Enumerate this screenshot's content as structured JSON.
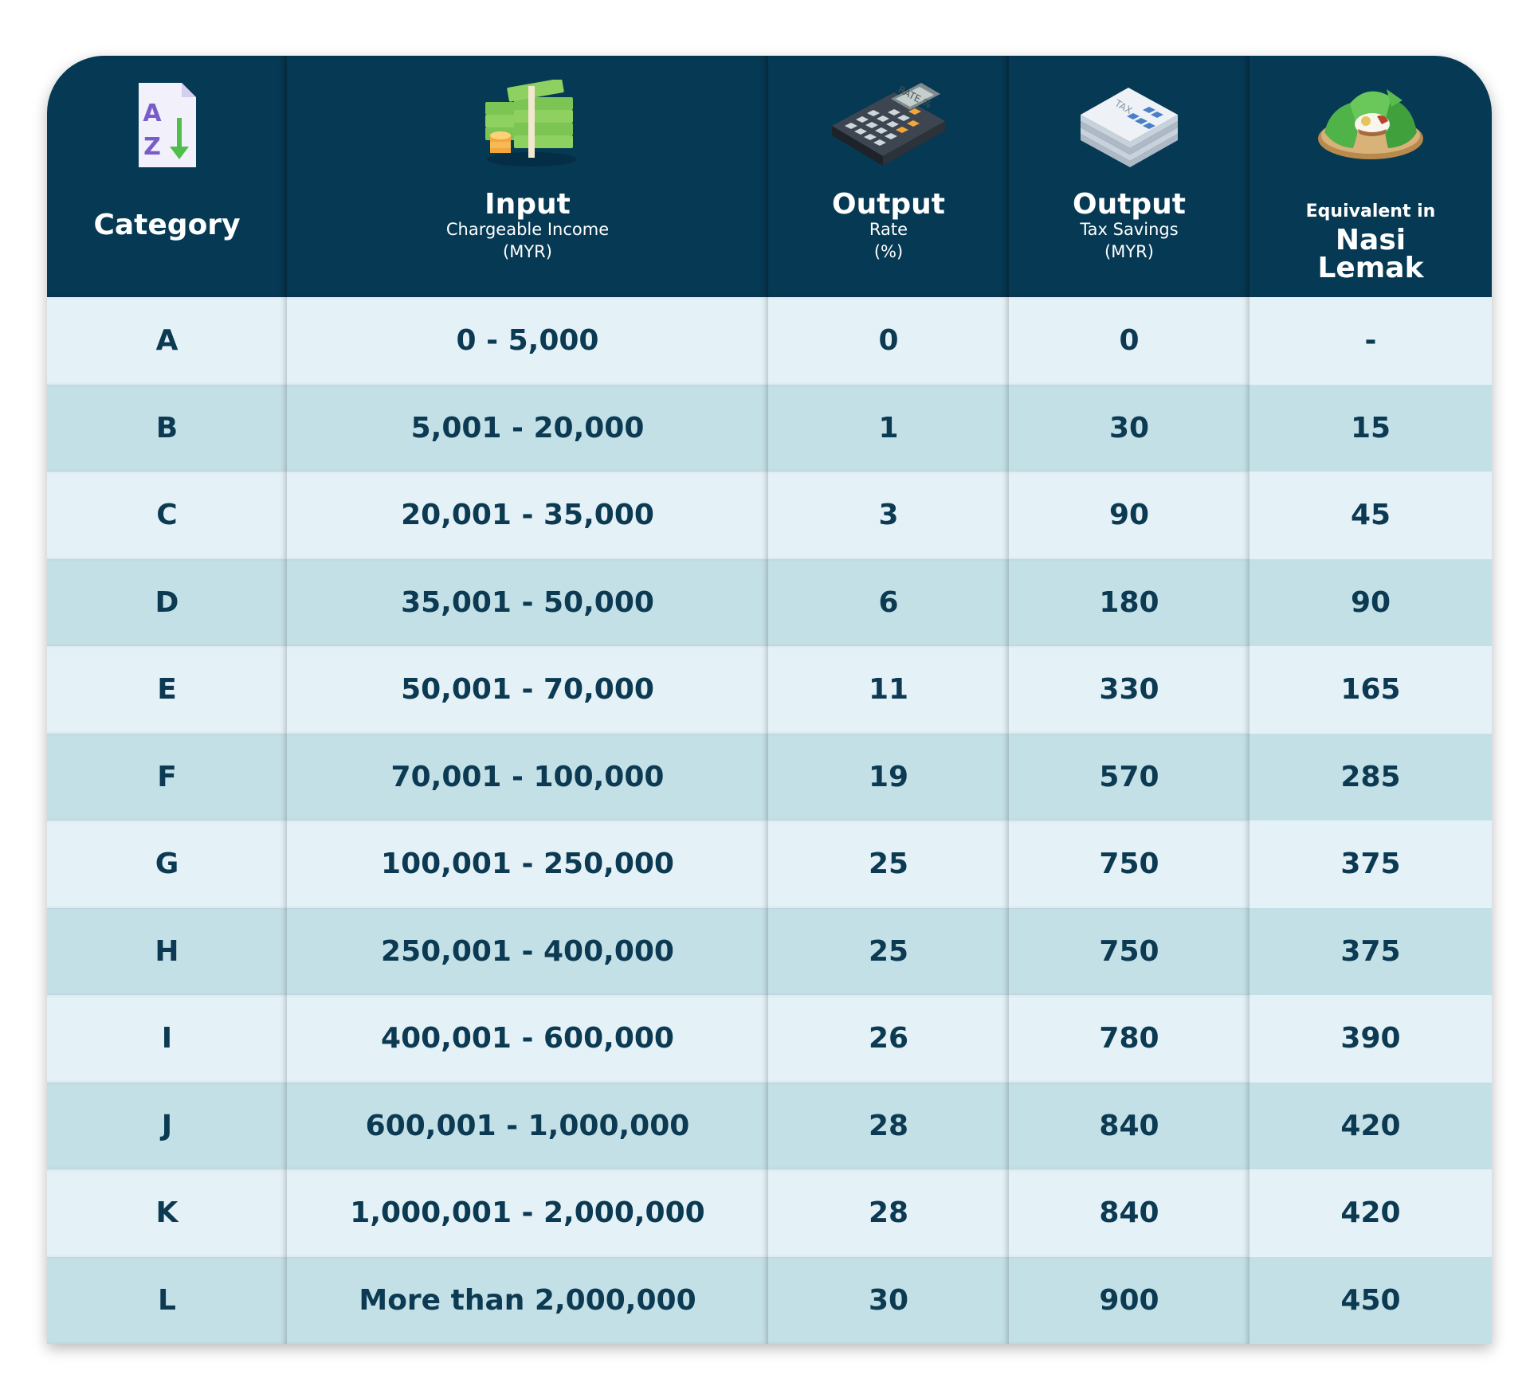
{
  "header": {
    "category": {
      "title": "Category",
      "icon": "az-sort-icon"
    },
    "input": {
      "title": "Input",
      "subtitle": "Chargeable Income",
      "unit": "(MYR)",
      "icon": "money-stack-icon"
    },
    "rate": {
      "title": "Output",
      "subtitle": "Rate",
      "unit": "(%)",
      "icon": "calculator-icon"
    },
    "savings": {
      "title": "Output",
      "subtitle": "Tax Savings",
      "unit": "(MYR)",
      "icon": "tax-document-icon"
    },
    "nasi": {
      "prefix": "Equivalent in",
      "title_line1": "Nasi",
      "title_line2": "Lemak",
      "icon": "nasi-lemak-icon"
    }
  },
  "colors": {
    "header_bg": "#063954",
    "row_light": "#e4f1f7",
    "row_dark": "#c4e0e7",
    "text": "#0b3a52"
  },
  "rows": [
    {
      "category": "A",
      "income": "0 - 5,000",
      "rate": "0",
      "savings": "0",
      "nasi_lemak": "-"
    },
    {
      "category": "B",
      "income": "5,001 - 20,000",
      "rate": "1",
      "savings": "30",
      "nasi_lemak": "15"
    },
    {
      "category": "C",
      "income": "20,001 - 35,000",
      "rate": "3",
      "savings": "90",
      "nasi_lemak": "45"
    },
    {
      "category": "D",
      "income": "35,001 - 50,000",
      "rate": "6",
      "savings": "180",
      "nasi_lemak": "90"
    },
    {
      "category": "E",
      "income": "50,001 - 70,000",
      "rate": "11",
      "savings": "330",
      "nasi_lemak": "165"
    },
    {
      "category": "F",
      "income": "70,001 - 100,000",
      "rate": "19",
      "savings": "570",
      "nasi_lemak": "285"
    },
    {
      "category": "G",
      "income": "100,001 - 250,000",
      "rate": "25",
      "savings": "750",
      "nasi_lemak": "375"
    },
    {
      "category": "H",
      "income": "250,001 - 400,000",
      "rate": "25",
      "savings": "750",
      "nasi_lemak": "375"
    },
    {
      "category": "I",
      "income": "400,001 - 600,000",
      "rate": "26",
      "savings": "780",
      "nasi_lemak": "390"
    },
    {
      "category": "J",
      "income": "600,001 - 1,000,000",
      "rate": "28",
      "savings": "840",
      "nasi_lemak": "420"
    },
    {
      "category": "K",
      "income": "1,000,001 - 2,000,000",
      "rate": "28",
      "savings": "840",
      "nasi_lemak": "420"
    },
    {
      "category": "L",
      "income": "More than 2,000,000",
      "rate": "30",
      "savings": "900",
      "nasi_lemak": "450"
    }
  ]
}
